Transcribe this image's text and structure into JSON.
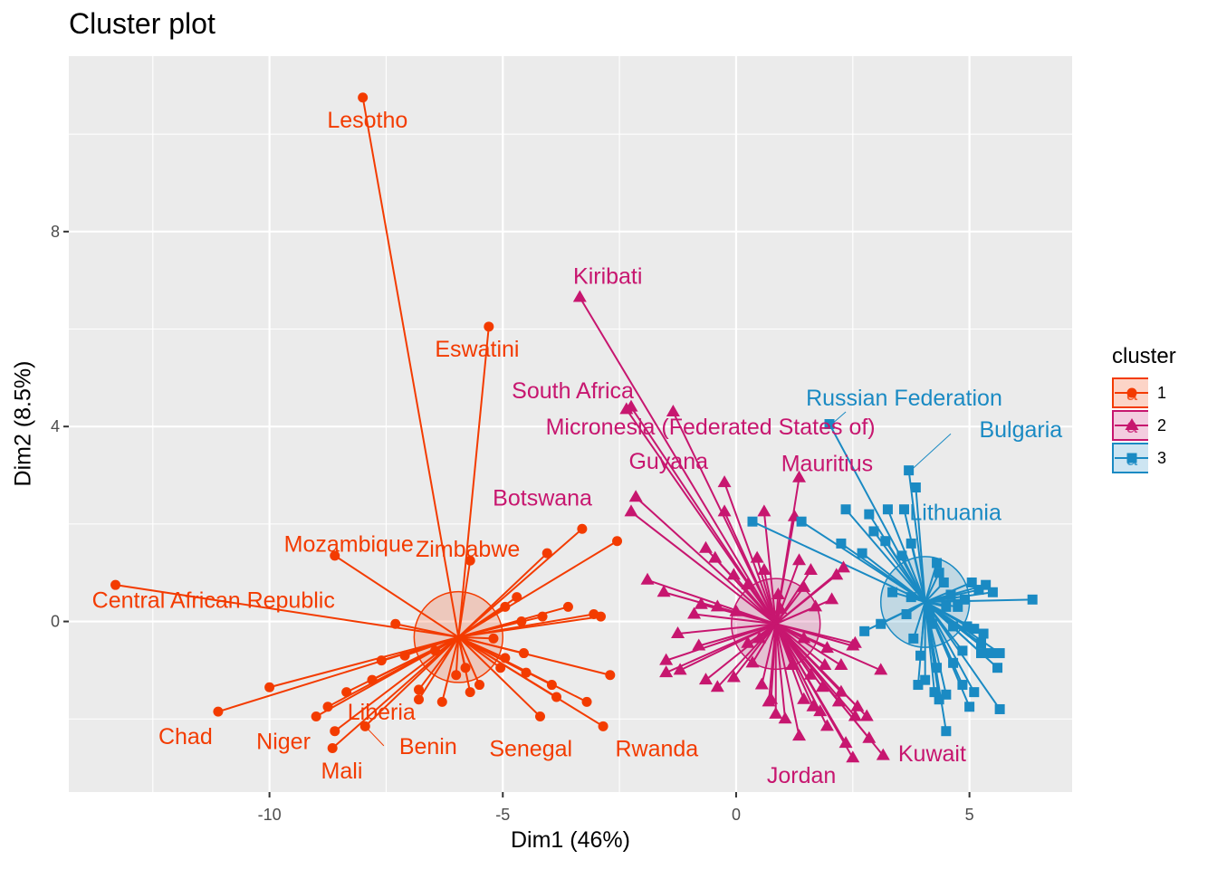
{
  "chart_data": {
    "type": "scatter",
    "title": "Cluster plot",
    "xlabel": "Dim1 (46%)",
    "ylabel": "Dim2 (8.5%)",
    "xlim": [
      -14.3,
      7.2
    ],
    "ylim": [
      -3.5,
      11.6
    ],
    "xticks": [
      -10,
      -5,
      0,
      5
    ],
    "xtick_labels": [
      "-10",
      "-5",
      "0",
      "5"
    ],
    "yticks": [
      0,
      4,
      8
    ],
    "ytick_labels": [
      "0",
      "4",
      "8"
    ],
    "grid": true,
    "legend_title": "cluster",
    "legend_position": "right",
    "legend_glyph": "a",
    "clusters": [
      {
        "name": "1",
        "color": "#f33b00",
        "shape": "circle",
        "center": [
          -5.95,
          -0.32
        ],
        "radius": 0.95,
        "points": [
          [
            -13.3,
            0.75
          ],
          [
            -8.0,
            10.75
          ],
          [
            -5.3,
            6.05
          ],
          [
            -8.6,
            1.35
          ],
          [
            -5.7,
            1.25
          ],
          [
            -11.1,
            -1.85
          ],
          [
            -10.0,
            -1.35
          ],
          [
            -9.0,
            -1.95
          ],
          [
            -8.75,
            -1.75
          ],
          [
            -8.6,
            -2.25
          ],
          [
            -8.65,
            -2.6
          ],
          [
            -7.95,
            -2.15
          ],
          [
            -8.35,
            -1.45
          ],
          [
            -7.8,
            -1.2
          ],
          [
            -7.6,
            -0.8
          ],
          [
            -7.3,
            -0.05
          ],
          [
            -7.1,
            -0.7
          ],
          [
            -6.8,
            -1.4
          ],
          [
            -6.45,
            -0.6
          ],
          [
            -6.8,
            -1.6
          ],
          [
            -6.3,
            -1.65
          ],
          [
            -6.0,
            -1.1
          ],
          [
            -5.7,
            -1.45
          ],
          [
            -5.5,
            -1.3
          ],
          [
            -5.2,
            -0.35
          ],
          [
            -5.05,
            -0.95
          ],
          [
            -4.95,
            0.3
          ],
          [
            -4.7,
            0.5
          ],
          [
            -4.55,
            -0.65
          ],
          [
            -4.5,
            -1.05
          ],
          [
            -4.15,
            0.1
          ],
          [
            -4.2,
            -1.95
          ],
          [
            -4.05,
            1.4
          ],
          [
            -3.95,
            -1.3
          ],
          [
            -3.85,
            -1.55
          ],
          [
            -3.6,
            0.3
          ],
          [
            -3.3,
            1.9
          ],
          [
            -3.05,
            0.15
          ],
          [
            -3.2,
            -1.65
          ],
          [
            -2.9,
            0.1
          ],
          [
            -2.85,
            -2.15
          ],
          [
            -2.7,
            -1.1
          ],
          [
            -2.55,
            1.65
          ],
          [
            -4.6,
            0.0
          ],
          [
            -5.8,
            -0.95
          ],
          [
            -4.95,
            -0.75
          ]
        ],
        "labels": [
          {
            "text": "Lesotho",
            "x": -7.9,
            "y": 10.3
          },
          {
            "text": "Eswatini",
            "x": -5.55,
            "y": 5.6
          },
          {
            "text": "Mozambique",
            "x": -8.3,
            "y": 1.6
          },
          {
            "text": "Zimbabwe",
            "x": -5.75,
            "y": 1.5
          },
          {
            "text": "Central African Republic",
            "x": -11.2,
            "y": 0.45
          },
          {
            "text": "Liberia",
            "x": -7.6,
            "y": -1.85
          },
          {
            "text": "Chad",
            "x": -11.8,
            "y": -2.35
          },
          {
            "text": "Niger",
            "x": -9.7,
            "y": -2.45
          },
          {
            "text": "Benin",
            "x": -6.6,
            "y": -2.55
          },
          {
            "text": "Mali",
            "x": -8.45,
            "y": -3.05
          },
          {
            "text": "Senegal",
            "x": -4.4,
            "y": -2.6
          },
          {
            "text": "Rwanda",
            "x": -1.7,
            "y": -2.6
          }
        ]
      },
      {
        "name": "2",
        "color": "#c7166f",
        "shape": "triangle",
        "center": [
          0.85,
          -0.05
        ],
        "radius": 0.95,
        "points": [
          [
            -3.35,
            6.65
          ],
          [
            -2.35,
            4.35
          ],
          [
            -2.25,
            4.4
          ],
          [
            -1.35,
            4.3
          ],
          [
            -2.15,
            2.55
          ],
          [
            -2.25,
            2.25
          ],
          [
            -0.25,
            2.85
          ],
          [
            -1.9,
            0.85
          ],
          [
            -1.55,
            0.6
          ],
          [
            -0.25,
            2.25
          ],
          [
            -0.65,
            1.5
          ],
          [
            -0.45,
            1.3
          ],
          [
            -0.75,
            0.35
          ],
          [
            -0.4,
            0.3
          ],
          [
            -0.05,
            0.95
          ],
          [
            0.45,
            1.3
          ],
          [
            0.6,
            2.25
          ],
          [
            1.25,
            2.15
          ],
          [
            1.35,
            2.95
          ],
          [
            1.35,
            1.25
          ],
          [
            1.6,
            1.05
          ],
          [
            0.9,
            0.55
          ],
          [
            0.25,
            0.75
          ],
          [
            -1.25,
            -0.25
          ],
          [
            -0.8,
            -0.5
          ],
          [
            -1.5,
            -0.8
          ],
          [
            -1.2,
            -1.0
          ],
          [
            -1.5,
            -1.05
          ],
          [
            -0.65,
            -1.2
          ],
          [
            -0.4,
            -1.35
          ],
          [
            -0.05,
            -1.15
          ],
          [
            0.35,
            -0.85
          ],
          [
            0.55,
            -1.3
          ],
          [
            0.7,
            -1.65
          ],
          [
            0.85,
            -1.9
          ],
          [
            1.05,
            -2.0
          ],
          [
            1.35,
            -2.35
          ],
          [
            1.45,
            -1.6
          ],
          [
            1.65,
            -1.75
          ],
          [
            1.85,
            -1.35
          ],
          [
            1.8,
            -1.85
          ],
          [
            1.95,
            -2.15
          ],
          [
            2.2,
            -1.65
          ],
          [
            2.25,
            -1.45
          ],
          [
            2.25,
            -0.9
          ],
          [
            2.55,
            -1.95
          ],
          [
            2.35,
            -2.5
          ],
          [
            2.5,
            -2.8
          ],
          [
            2.6,
            -1.75
          ],
          [
            2.8,
            -1.95
          ],
          [
            2.55,
            -0.45
          ],
          [
            1.95,
            -0.55
          ],
          [
            1.45,
            -0.35
          ],
          [
            2.05,
            0.45
          ],
          [
            2.15,
            0.95
          ],
          [
            2.5,
            -0.5
          ],
          [
            3.1,
            -1.0
          ],
          [
            3.15,
            -2.75
          ],
          [
            2.85,
            -2.4
          ],
          [
            1.9,
            -0.9
          ],
          [
            1.6,
            -1.1
          ],
          [
            0.75,
            -1.6
          ],
          [
            1.2,
            -0.9
          ],
          [
            0.5,
            -0.35
          ],
          [
            0.25,
            -0.45
          ],
          [
            0.95,
            0.25
          ],
          [
            1.7,
            0.3
          ],
          [
            1.45,
            0.7
          ],
          [
            0.0,
            0.2
          ],
          [
            -0.9,
            0.15
          ],
          [
            0.6,
            1.05
          ],
          [
            2.3,
            1.1
          ]
        ],
        "labels": [
          {
            "text": "Kiribati",
            "x": -2.75,
            "y": 7.1
          },
          {
            "text": "South Africa",
            "x": -3.5,
            "y": 4.75
          },
          {
            "text": "Micronesia (Federated States of)",
            "x": -0.55,
            "y": 4.0
          },
          {
            "text": "Guyana",
            "x": -1.45,
            "y": 3.3
          },
          {
            "text": "Mauritius",
            "x": 1.95,
            "y": 3.25
          },
          {
            "text": "Botswana",
            "x": -4.15,
            "y": 2.55
          },
          {
            "text": "Kuwait",
            "x": 4.2,
            "y": -2.7
          },
          {
            "text": "Jordan",
            "x": 1.4,
            "y": -3.15
          }
        ]
      },
      {
        "name": "3",
        "color": "#1a8ac3",
        "shape": "square",
        "center": [
          4.05,
          0.4
        ],
        "radius": 0.95,
        "points": [
          [
            2.0,
            4.05
          ],
          [
            3.7,
            3.1
          ],
          [
            3.85,
            2.75
          ],
          [
            2.35,
            2.3
          ],
          [
            2.85,
            2.2
          ],
          [
            3.25,
            2.3
          ],
          [
            3.6,
            2.3
          ],
          [
            0.35,
            2.05
          ],
          [
            1.4,
            2.05
          ],
          [
            2.25,
            1.6
          ],
          [
            2.7,
            1.4
          ],
          [
            2.95,
            1.85
          ],
          [
            3.2,
            1.65
          ],
          [
            3.55,
            1.35
          ],
          [
            3.75,
            1.6
          ],
          [
            4.3,
            1.2
          ],
          [
            4.35,
            1.0
          ],
          [
            4.45,
            0.8
          ],
          [
            5.05,
            0.8
          ],
          [
            5.35,
            0.75
          ],
          [
            5.2,
            0.65
          ],
          [
            5.5,
            0.6
          ],
          [
            6.35,
            0.45
          ],
          [
            3.35,
            0.6
          ],
          [
            3.75,
            0.5
          ],
          [
            4.6,
            0.55
          ],
          [
            4.9,
            0.45
          ],
          [
            4.5,
            0.3
          ],
          [
            4.75,
            0.3
          ],
          [
            4.15,
            0.2
          ],
          [
            4.2,
            -0.05
          ],
          [
            4.65,
            -0.1
          ],
          [
            4.95,
            -0.1
          ],
          [
            5.1,
            -0.15
          ],
          [
            5.3,
            -0.25
          ],
          [
            5.25,
            -0.45
          ],
          [
            5.45,
            -0.65
          ],
          [
            5.25,
            -0.65
          ],
          [
            4.85,
            -0.6
          ],
          [
            4.65,
            -0.85
          ],
          [
            4.3,
            -0.95
          ],
          [
            4.05,
            -1.2
          ],
          [
            4.25,
            -1.45
          ],
          [
            4.35,
            -1.6
          ],
          [
            4.5,
            -1.5
          ],
          [
            4.85,
            -1.3
          ],
          [
            5.1,
            -1.45
          ],
          [
            5.0,
            -1.75
          ],
          [
            5.65,
            -0.65
          ],
          [
            5.6,
            -0.95
          ],
          [
            5.65,
            -1.8
          ],
          [
            4.5,
            -2.25
          ],
          [
            2.75,
            -0.2
          ],
          [
            3.1,
            -0.05
          ],
          [
            3.65,
            0.15
          ],
          [
            3.8,
            -0.35
          ],
          [
            3.95,
            -0.7
          ],
          [
            3.9,
            -1.3
          ]
        ],
        "labels": [
          {
            "text": "Russian Federation",
            "x": 3.6,
            "y": 4.6
          },
          {
            "text": "Bulgaria",
            "x": 6.1,
            "y": 3.95
          },
          {
            "text": "Lithuania",
            "x": 4.7,
            "y": 2.25
          }
        ],
        "leaders": [
          {
            "from": [
              2.05,
              4.05
            ],
            "to": [
              2.35,
              4.3
            ]
          },
          {
            "from": [
              3.8,
              3.15
            ],
            "to": [
              4.6,
              3.85
            ]
          }
        ]
      }
    ],
    "leader_lines": [
      {
        "cluster": "1",
        "from": [
          -7.95,
          -2.15
        ],
        "to": [
          -7.55,
          -2.55
        ]
      }
    ]
  }
}
